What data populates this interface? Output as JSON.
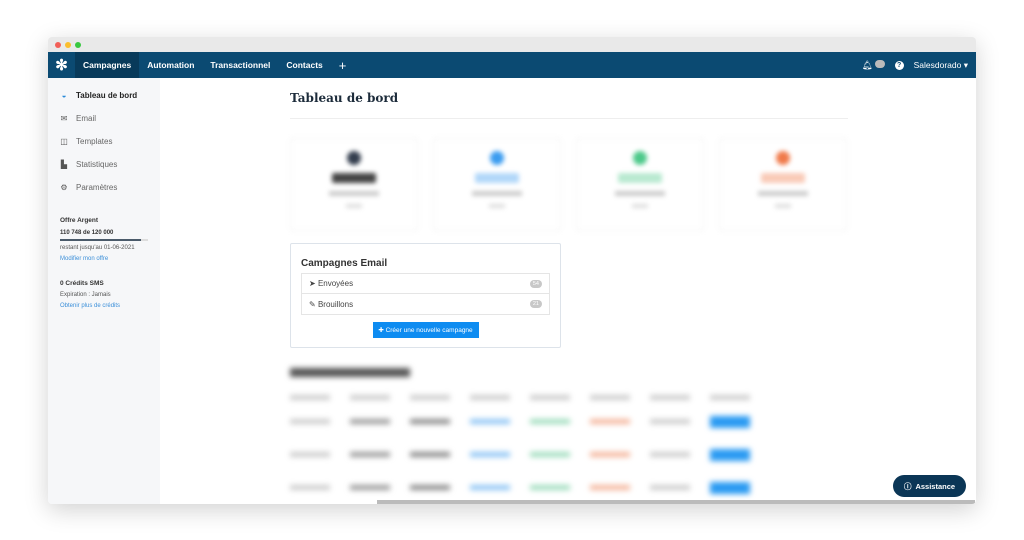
{
  "nav": {
    "items": [
      "Campagnes",
      "Automation",
      "Transactionnel",
      "Contacts"
    ],
    "add": "+",
    "account": "Salesdorado"
  },
  "sidebar": {
    "items": [
      {
        "label": "Tableau de bord",
        "icon": "dashboard-icon"
      },
      {
        "label": "Email",
        "icon": "envelope-icon"
      },
      {
        "label": "Templates",
        "icon": "columns-icon"
      },
      {
        "label": "Statistiques",
        "icon": "bar-chart-icon"
      },
      {
        "label": "Paramètres",
        "icon": "gear-icon"
      }
    ],
    "plan": {
      "title": "Offre Argent",
      "usage": "110 748 de 120 000",
      "usage_fraction": 0.923,
      "validity": "restant jusqu'au 01-06-2021",
      "link": "Modifier mon offre"
    },
    "sms": {
      "title": "0 Crédits SMS",
      "expiration": "Expiration : Jamais",
      "link": "Obtenir plus de crédits"
    }
  },
  "page": {
    "title": "Tableau de bord"
  },
  "stats_colors": [
    "#333d4d",
    "#3b9cf0",
    "#4dc98a",
    "#f07a4a"
  ],
  "campaigns": {
    "title": "Campagnes Email",
    "rows": [
      {
        "label": "Envoyées",
        "count": "54"
      },
      {
        "label": "Brouillons",
        "count": "21"
      }
    ],
    "create": "Créer une nouvelle campagne"
  },
  "assistance": "Assistance"
}
